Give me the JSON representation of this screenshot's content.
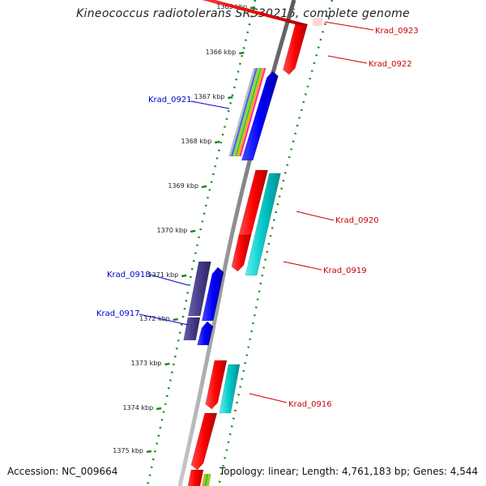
{
  "title": "Kineococcus radiotolerans SRS30216, complete genome",
  "footer": {
    "accession": "Accession: NC_009664",
    "summary": "Topology: linear; Length: 4,761,183 bp; Genes: 4,544"
  },
  "colors": {
    "backbone": "#8c8c8c",
    "dots": "#1a8a1a",
    "reverse_strand_gene": "#ff0000",
    "teal_gene": "#00c8c8",
    "forward_gene": "#0000ff",
    "purple_gene": "#483d8b",
    "forward_label": "#0000cc",
    "reverse_label": "#cc0000"
  },
  "ticks": [
    "1365 kbp",
    "1366 kbp",
    "1367 kbp",
    "1368 kbp",
    "1369 kbp",
    "1370 kbp",
    "1371 kbp",
    "1372 kbp",
    "1373 kbp",
    "1374 kbp",
    "1375 kbp"
  ],
  "labels": {
    "forward": [
      "Krad_0921",
      "Krad_0918",
      "Krad_0917"
    ],
    "reverse": [
      "Krad_0923",
      "Krad_0922",
      "Krad_0920",
      "Krad_0919",
      "Krad_0916"
    ]
  }
}
